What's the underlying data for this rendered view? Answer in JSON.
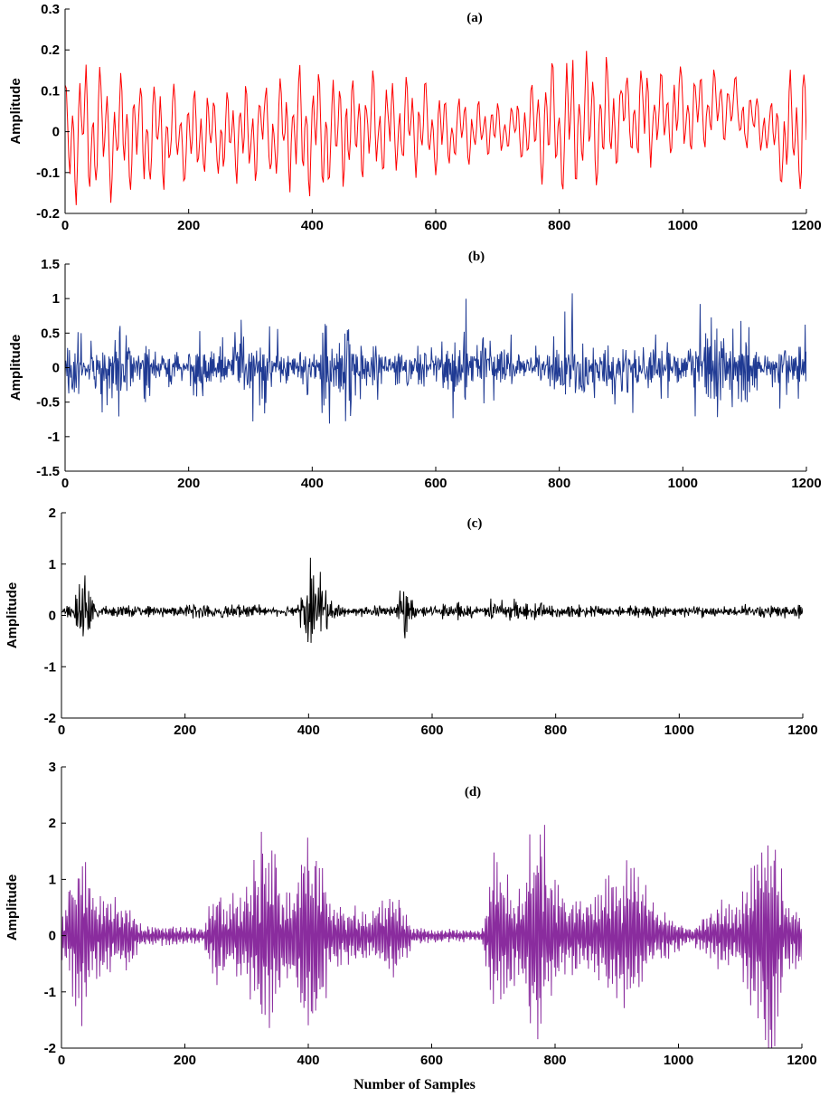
{
  "figure": {
    "xlabel": "Number of Samples"
  },
  "chart_data": [
    {
      "type": "line",
      "title": "(a)",
      "ylabel": "Amplitude",
      "xlabel": "",
      "xlim": [
        0,
        1200
      ],
      "ylim": [
        -0.2,
        0.3
      ],
      "xticks": [
        0,
        200,
        400,
        600,
        800,
        1000,
        1200
      ],
      "yticks": [
        -0.2,
        -0.1,
        0,
        0.1,
        0.2,
        0.3
      ],
      "ytick_labels": [
        "-0.2",
        "-0.1",
        "0",
        "0.1",
        "0.2",
        "0.3"
      ],
      "color": "#ff0000",
      "envelope": [
        [
          0,
          0.15
        ],
        [
          20,
          0.22
        ],
        [
          60,
          0.18
        ],
        [
          120,
          0.16
        ],
        [
          200,
          0.13
        ],
        [
          260,
          0.12
        ],
        [
          320,
          0.14
        ],
        [
          360,
          0.16
        ],
        [
          395,
          0.19
        ],
        [
          450,
          0.16
        ],
        [
          520,
          0.14
        ],
        [
          600,
          0.12
        ],
        [
          650,
          0.09
        ],
        [
          720,
          0.07
        ],
        [
          750,
          0.12
        ],
        [
          800,
          0.18
        ],
        [
          840,
          0.2
        ],
        [
          900,
          0.14
        ],
        [
          960,
          0.13
        ],
        [
          1020,
          0.12
        ],
        [
          1080,
          0.1
        ],
        [
          1140,
          0.08
        ],
        [
          1200,
          0.21
        ]
      ],
      "offset": [
        [
          0,
          0
        ],
        [
          200,
          -0.01
        ],
        [
          560,
          0.01
        ],
        [
          600,
          0
        ],
        [
          700,
          0.005
        ],
        [
          1080,
          0.06
        ],
        [
          1120,
          0.02
        ],
        [
          1160,
          -0.02
        ],
        [
          1200,
          0.03
        ]
      ],
      "samples": 600,
      "seed": 11,
      "style": "smooth"
    },
    {
      "type": "line",
      "title": "(b)",
      "ylabel": "Amplitude",
      "xlabel": "",
      "xlim": [
        0,
        1200
      ],
      "ylim": [
        -1.5,
        1.5
      ],
      "xticks": [
        0,
        200,
        400,
        600,
        800,
        1000,
        1200
      ],
      "yticks": [
        -1.5,
        -1,
        -0.5,
        0,
        0.5,
        1,
        1.5
      ],
      "ytick_labels": [
        "-1.5",
        "-1",
        "-0.5",
        "0",
        "0.5",
        "1",
        "1.5"
      ],
      "color": "#1f3a93",
      "envelope": [
        [
          0,
          0.8
        ],
        [
          30,
          0.5
        ],
        [
          80,
          0.9
        ],
        [
          140,
          0.5
        ],
        [
          200,
          0.4
        ],
        [
          218,
          1.15
        ],
        [
          240,
          0.5
        ],
        [
          300,
          0.8
        ],
        [
          380,
          0.4
        ],
        [
          450,
          1.1
        ],
        [
          500,
          0.5
        ],
        [
          560,
          0.4
        ],
        [
          600,
          0.6
        ],
        [
          672,
          1.35
        ],
        [
          720,
          0.5
        ],
        [
          760,
          0.3
        ],
        [
          820,
          1.15
        ],
        [
          880,
          0.6
        ],
        [
          940,
          0.7
        ],
        [
          1000,
          0.4
        ],
        [
          1040,
          1.15
        ],
        [
          1100,
          0.7
        ],
        [
          1160,
          0.6
        ],
        [
          1200,
          0.75
        ]
      ],
      "offset": [
        [
          0,
          0
        ],
        [
          1200,
          0
        ]
      ],
      "samples": 1200,
      "seed": 23,
      "style": "spiky"
    },
    {
      "type": "line",
      "title": "(c)",
      "ylabel": "Amplitude",
      "xlabel": "",
      "xlim": [
        0,
        1200
      ],
      "ylim": [
        -2,
        2
      ],
      "xticks": [
        0,
        200,
        400,
        600,
        800,
        1000,
        1200
      ],
      "yticks": [
        -2,
        -1,
        0,
        1,
        2
      ],
      "ytick_labels": [
        "-2",
        "-1",
        "0",
        "1",
        "2"
      ],
      "color": "#000000",
      "envelope": [
        [
          0,
          0.15
        ],
        [
          20,
          0.15
        ],
        [
          30,
          1.0
        ],
        [
          45,
          0.6
        ],
        [
          55,
          0.15
        ],
        [
          380,
          0.15
        ],
        [
          395,
          0.9
        ],
        [
          410,
          1.5
        ],
        [
          425,
          0.8
        ],
        [
          440,
          0.15
        ],
        [
          540,
          0.15
        ],
        [
          553,
          0.85
        ],
        [
          565,
          0.3
        ],
        [
          580,
          0.15
        ],
        [
          700,
          0.3
        ],
        [
          740,
          0.25
        ],
        [
          800,
          0.15
        ],
        [
          1200,
          0.15
        ]
      ],
      "offset": [
        [
          0,
          0.08
        ],
        [
          1200,
          0.08
        ]
      ],
      "samples": 1200,
      "seed": 37,
      "style": "burst"
    },
    {
      "type": "line",
      "title": "(d)",
      "ylabel": "Amplitude",
      "xlabel": "",
      "xlim": [
        0,
        1200
      ],
      "ylim": [
        -2,
        3
      ],
      "xticks": [
        0,
        200,
        400,
        600,
        800,
        1000,
        1200
      ],
      "yticks": [
        -2,
        -1,
        0,
        1,
        2,
        3
      ],
      "ytick_labels": [
        "-2",
        "-1",
        "0",
        "1",
        "2",
        "3"
      ],
      "color": "#8a2c9e",
      "envelope": [
        [
          0,
          0.5
        ],
        [
          30,
          1.7
        ],
        [
          60,
          0.8
        ],
        [
          110,
          0.7
        ],
        [
          130,
          0.2
        ],
        [
          230,
          0.15
        ],
        [
          250,
          1.0
        ],
        [
          290,
          0.7
        ],
        [
          330,
          2.1
        ],
        [
          370,
          0.8
        ],
        [
          400,
          2.3
        ],
        [
          440,
          0.6
        ],
        [
          500,
          0.5
        ],
        [
          540,
          0.9
        ],
        [
          570,
          0.15
        ],
        [
          680,
          0.1
        ],
        [
          700,
          1.5
        ],
        [
          740,
          0.8
        ],
        [
          772,
          2.4
        ],
        [
          810,
          0.8
        ],
        [
          860,
          0.7
        ],
        [
          920,
          1.6
        ],
        [
          960,
          0.6
        ],
        [
          1020,
          0.15
        ],
        [
          1060,
          0.6
        ],
        [
          1100,
          0.7
        ],
        [
          1150,
          2.6
        ],
        [
          1175,
          0.8
        ],
        [
          1200,
          0.6
        ]
      ],
      "offset": [
        [
          0,
          0
        ],
        [
          1200,
          0
        ]
      ],
      "samples": 1200,
      "seed": 53,
      "style": "oscill"
    }
  ]
}
